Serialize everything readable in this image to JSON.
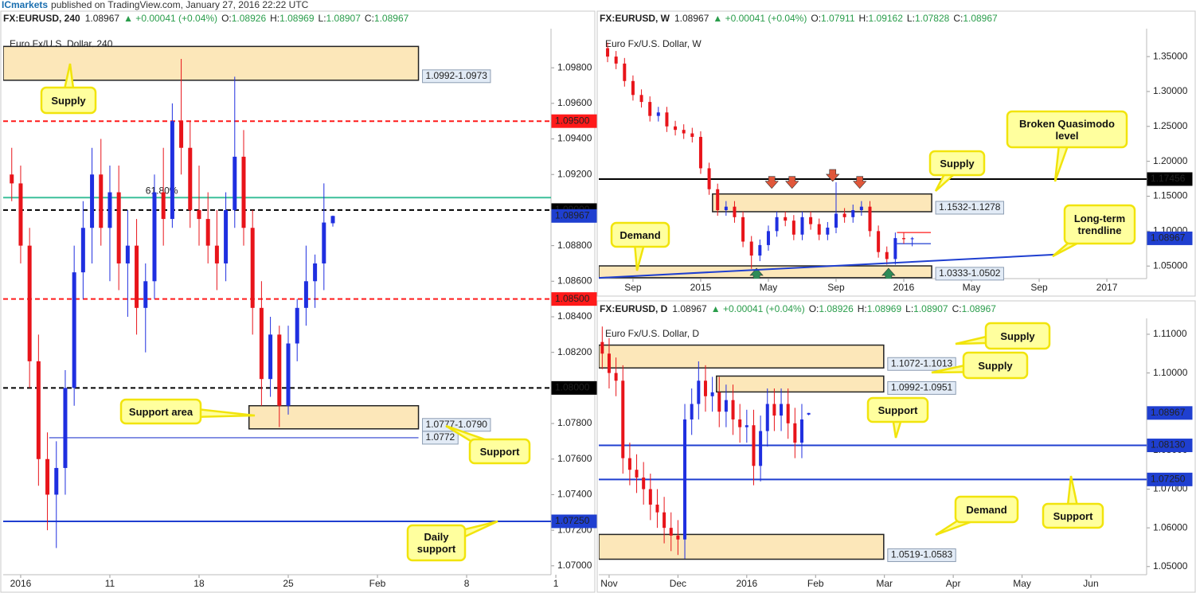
{
  "banner": {
    "brand": "ICmarkets",
    "text": "published on TradingView.com, January 27, 2016 22:22 UTC"
  },
  "chart_data": [
    {
      "type": "candlestick",
      "header": {
        "symbol": "FX:EURUSD, 240",
        "last": "1.08967",
        "change": "▲ +0.00041 (+0.04%)",
        "ohlc": [
          {
            "label": "O:",
            "value": "1.08926"
          },
          {
            "label": "H:",
            "value": "1.08969"
          },
          {
            "label": "L:",
            "value": "1.08907"
          },
          {
            "label": "C:",
            "value": "1.08967"
          }
        ]
      },
      "watermark": "Euro Fx/U.S. Dollar, 240",
      "up_color": "#1f2fe0",
      "down_color": "#e8141a",
      "x": [
        -0.5,
        0,
        0.5,
        1,
        1.5,
        2,
        2.5,
        3,
        3.5,
        4,
        4.5,
        5,
        5.5,
        6,
        6.5,
        7,
        7.5,
        8,
        8.5,
        9,
        9.5,
        10,
        10.5,
        11,
        11.5,
        12,
        12.5,
        13,
        13.5,
        14,
        14.5,
        15,
        15.5,
        16,
        16.5,
        17,
        17.5
      ],
      "open": [
        1.092,
        1.0915,
        1.088,
        1.0815,
        1.076,
        1.074,
        1.0755,
        1.08,
        1.0865,
        1.089,
        1.092,
        1.089,
        1.091,
        1.087,
        1.088,
        1.0845,
        1.086,
        1.091,
        1.0895,
        1.095,
        1.0935,
        1.09,
        1.0895,
        1.088,
        1.087,
        1.09,
        1.093,
        1.089,
        1.0845,
        1.0805,
        1.083,
        1.079,
        1.0825,
        1.0845,
        1.086,
        1.087,
        1.08926
      ],
      "high": [
        1.0935,
        1.0925,
        1.089,
        1.083,
        1.0775,
        1.077,
        1.081,
        1.088,
        1.0905,
        1.0935,
        1.094,
        1.0925,
        1.0925,
        1.09,
        1.0895,
        1.087,
        1.092,
        1.0935,
        1.096,
        1.0985,
        1.095,
        1.0925,
        1.091,
        1.09,
        1.091,
        1.0975,
        1.0945,
        1.09,
        1.086,
        1.084,
        1.0835,
        1.0835,
        1.085,
        1.088,
        1.0875,
        1.0915,
        1.08969
      ],
      "low": [
        1.0905,
        1.087,
        1.08,
        1.0745,
        1.072,
        1.071,
        1.074,
        1.079,
        1.085,
        1.087,
        1.088,
        1.086,
        1.0855,
        1.084,
        1.083,
        1.082,
        1.085,
        1.088,
        1.089,
        1.092,
        1.089,
        1.088,
        1.087,
        1.0855,
        1.086,
        1.089,
        1.088,
        1.083,
        1.079,
        1.0795,
        1.0778,
        1.0785,
        1.0815,
        1.0835,
        1.0845,
        1.0855,
        1.08907
      ],
      "close": [
        1.0915,
        1.088,
        1.0815,
        1.076,
        1.074,
        1.0755,
        1.08,
        1.0865,
        1.089,
        1.092,
        1.089,
        1.091,
        1.087,
        1.088,
        1.0845,
        1.086,
        1.091,
        1.0895,
        1.095,
        1.0935,
        1.09,
        1.0895,
        1.088,
        1.087,
        1.09,
        1.093,
        1.089,
        1.0845,
        1.0805,
        1.083,
        1.079,
        1.0825,
        1.0845,
        1.086,
        1.087,
        1.0893,
        1.08967
      ],
      "xlim": [
        -0.98,
        29.73
      ],
      "xticks": [
        {
          "value": 0,
          "label": "2016"
        },
        {
          "value": 5,
          "label": "11"
        },
        {
          "value": 10,
          "label": "18"
        },
        {
          "value": 15,
          "label": "25"
        },
        {
          "value": 20,
          "label": "Feb"
        },
        {
          "value": 25,
          "label": "8"
        },
        {
          "value": 30,
          "label": "1"
        }
      ],
      "ylim": [
        1.0695,
        1.1002
      ],
      "yticks": [
        {
          "value": 1.07,
          "label": "1.07000"
        },
        {
          "value": 1.072,
          "label": "1.07200"
        },
        {
          "value": 1.074,
          "label": "1.07400"
        },
        {
          "value": 1.076,
          "label": "1.07600"
        },
        {
          "value": 1.078,
          "label": "1.07800"
        },
        {
          "value": 1.08,
          "label": "1.08000"
        },
        {
          "value": 1.082,
          "label": "1.08200"
        },
        {
          "value": 1.084,
          "label": "1.08400"
        },
        {
          "value": 1.086,
          "label": "1.08600"
        },
        {
          "value": 1.088,
          "label": "1.08800"
        },
        {
          "value": 1.09,
          "label": "1.09000"
        },
        {
          "value": 1.092,
          "label": "1.09200"
        },
        {
          "value": 1.094,
          "label": "1.09400"
        },
        {
          "value": 1.096,
          "label": "1.09600"
        },
        {
          "value": 1.098,
          "label": "1.09800"
        }
      ],
      "zones": [
        {
          "low": 1.0973,
          "high": 1.0992,
          "label": "1.0992-1.0973",
          "x_range": [
            -0.98,
            22.3
          ]
        },
        {
          "low": 1.0777,
          "high": 1.079,
          "label": "1.0777-1.0790",
          "x_range": [
            12.8,
            22.3
          ]
        }
      ],
      "levels": [
        {
          "value": 1.095,
          "label": "1.09500",
          "color": "#ff1a1a",
          "style": "dashed",
          "label_at": "axis"
        },
        {
          "value": 1.09,
          "label": "1.09000",
          "color": "#000000",
          "style": "dashed",
          "label_at": "axis"
        },
        {
          "value": 1.08967,
          "label": "1.08967",
          "color": "#1f3fd0",
          "style": "none",
          "label_at": "axis"
        },
        {
          "value": 1.085,
          "label": "1.08500",
          "color": "#ff1a1a",
          "style": "dashed",
          "label_at": "axis"
        },
        {
          "value": 1.08,
          "label": "1.08000",
          "color": "#000000",
          "style": "dashed",
          "label_at": "axis"
        },
        {
          "value": 1.0772,
          "label": "1.0772",
          "color": "#2a3fcf",
          "style": "thin",
          "label_at": "line",
          "x_range": [
            1.6,
            22.3
          ]
        },
        {
          "value": 1.0725,
          "label": "1.07250",
          "color": "#1f3fd0",
          "style": "solid",
          "label_at": "axis"
        }
      ],
      "fib": {
        "value": 1.0907,
        "label": "61.80%",
        "x": 7,
        "color": "#3cbf9a"
      },
      "callouts": [
        "Supply",
        "Support area",
        "Support",
        "Daily support"
      ]
    },
    {
      "type": "candlestick",
      "header": {
        "symbol": "FX:EURUSD, W",
        "last": "1.08967",
        "change": "▲ +0.00041 (+0.04%)",
        "ohlc": [
          {
            "label": "O:",
            "value": "1.07911"
          },
          {
            "label": "H:",
            "value": "1.09162"
          },
          {
            "label": "L:",
            "value": "1.07828"
          },
          {
            "label": "C:",
            "value": "1.08967"
          }
        ]
      },
      "watermark": "Euro Fx/U.S. Dollar, W",
      "up_color": "#1f2fe0",
      "down_color": "#e8141a",
      "x": [
        -1.5,
        -1,
        -0.5,
        0,
        0.5,
        1,
        1.5,
        2,
        2.5,
        3,
        3.5,
        4,
        4.5,
        5,
        5.5,
        6,
        6.5,
        7,
        7.5,
        8,
        8.5,
        9,
        9.5,
        10,
        10.5,
        11,
        11.5,
        12,
        12.5,
        13,
        13.5,
        14,
        14.5,
        15,
        15.5,
        16,
        16.5
      ],
      "open": [
        1.362,
        1.35,
        1.34,
        1.315,
        1.295,
        1.285,
        1.265,
        1.27,
        1.25,
        1.245,
        1.24,
        1.235,
        1.19,
        1.16,
        1.13,
        1.135,
        1.12,
        1.085,
        1.065,
        1.08,
        1.1,
        1.12,
        1.115,
        1.095,
        1.12,
        1.11,
        1.095,
        1.105,
        1.125,
        1.12,
        1.13,
        1.135,
        1.1,
        1.07,
        1.06,
        1.09,
        1.0885
      ],
      "high": [
        1.37,
        1.358,
        1.348,
        1.323,
        1.303,
        1.293,
        1.278,
        1.278,
        1.258,
        1.253,
        1.248,
        1.243,
        1.198,
        1.168,
        1.143,
        1.143,
        1.128,
        1.093,
        1.088,
        1.108,
        1.128,
        1.128,
        1.123,
        1.128,
        1.128,
        1.118,
        1.113,
        1.17,
        1.133,
        1.138,
        1.143,
        1.143,
        1.108,
        1.078,
        1.098,
        1.098,
        1.0916
      ],
      "low": [
        1.342,
        1.332,
        1.307,
        1.287,
        1.277,
        1.257,
        1.257,
        1.242,
        1.237,
        1.232,
        1.227,
        1.182,
        1.152,
        1.122,
        1.122,
        1.112,
        1.077,
        1.046,
        1.057,
        1.072,
        1.092,
        1.107,
        1.087,
        1.087,
        1.102,
        1.087,
        1.087,
        1.097,
        1.112,
        1.112,
        1.122,
        1.092,
        1.062,
        1.052,
        1.052,
        1.082,
        1.0783
      ],
      "close": [
        1.35,
        1.34,
        1.315,
        1.295,
        1.285,
        1.265,
        1.27,
        1.25,
        1.245,
        1.24,
        1.235,
        1.19,
        1.16,
        1.13,
        1.135,
        1.12,
        1.085,
        1.065,
        1.08,
        1.1,
        1.12,
        1.115,
        1.095,
        1.12,
        1.11,
        1.095,
        1.105,
        1.125,
        1.12,
        1.13,
        1.135,
        1.1,
        1.07,
        1.06,
        1.09,
        1.0885,
        1.0897
      ],
      "xlim": [
        -2.02,
        30.35
      ],
      "xticks": [
        {
          "value": 0,
          "label": "Sep"
        },
        {
          "value": 4,
          "label": "2015"
        },
        {
          "value": 8,
          "label": "May"
        },
        {
          "value": 12,
          "label": "Sep"
        },
        {
          "value": 16,
          "label": "2016"
        },
        {
          "value": 20,
          "label": "May"
        },
        {
          "value": 24,
          "label": "Sep"
        },
        {
          "value": 28,
          "label": "2017"
        }
      ],
      "ylim": [
        1.032,
        1.39
      ],
      "yticks": [
        {
          "value": 1.05,
          "label": "1.05000"
        },
        {
          "value": 1.1,
          "label": "1.10000"
        },
        {
          "value": 1.15,
          "label": "1.15000"
        },
        {
          "value": 1.2,
          "label": "1.20000"
        },
        {
          "value": 1.25,
          "label": "1.25000"
        },
        {
          "value": 1.3,
          "label": "1.30000"
        },
        {
          "value": 1.35,
          "label": "1.35000"
        }
      ],
      "zones": [
        {
          "low": 1.1278,
          "high": 1.1532,
          "label": "1.1532-1.1278",
          "x_range": [
            4.7,
            17.65
          ]
        },
        {
          "low": 1.0333,
          "high": 1.0502,
          "label": "1.0333-1.0502",
          "x_range": [
            -2.02,
            17.65
          ]
        }
      ],
      "levels": [
        {
          "value": 1.17456,
          "label": "1.17456",
          "color": "#000000",
          "style": "solid",
          "label_at": "axis"
        },
        {
          "value": 1.08967,
          "label": "1.08967",
          "color": "#1f3fd0",
          "style": "none",
          "label_at": "axis"
        },
        {
          "value": 1.098,
          "color": "#ff1a1a",
          "style": "thin",
          "x_range": [
            15.6,
            17.6
          ]
        },
        {
          "value": 1.082,
          "color": "#1f3fd0",
          "style": "thin",
          "x_range": [
            15.6,
            17.6
          ]
        }
      ],
      "trendline": [
        {
          "x": -2.02,
          "y": 1.033
        },
        {
          "x": 25,
          "y": 1.0665
        }
      ],
      "markers": [
        {
          "x": 8.2,
          "y": 1.168,
          "dir": "down",
          "color": "#e0573a"
        },
        {
          "x": 9.4,
          "y": 1.168,
          "dir": "down",
          "color": "#e0573a"
        },
        {
          "x": 11.8,
          "y": 1.178,
          "dir": "down",
          "color": "#e0573a"
        },
        {
          "x": 13.4,
          "y": 1.168,
          "dir": "down",
          "color": "#e0573a"
        },
        {
          "x": 7.3,
          "y": 1.04,
          "dir": "up",
          "color": "#2e8b57"
        },
        {
          "x": 15.1,
          "y": 1.04,
          "dir": "up",
          "color": "#2e8b57"
        }
      ],
      "callouts": [
        "Broken Quasimodo level",
        "Supply",
        "Long-term trendline",
        "Demand"
      ]
    },
    {
      "type": "candlestick",
      "header": {
        "symbol": "FX:EURUSD, D",
        "last": "1.08967",
        "change": "▲ +0.00041 (+0.04%)",
        "ohlc": [
          {
            "label": "O:",
            "value": "1.08926"
          },
          {
            "label": "H:",
            "value": "1.08969"
          },
          {
            "label": "L:",
            "value": "1.08907"
          },
          {
            "label": "C:",
            "value": "1.08967"
          }
        ]
      },
      "watermark": "Euro Fx/U.S. Dollar, D",
      "up_color": "#1f2fe0",
      "down_color": "#e8141a",
      "x": [
        -0.1,
        0,
        0.1,
        0.2,
        0.3,
        0.4,
        0.5,
        0.6,
        0.7,
        0.8,
        0.9,
        1,
        1.1,
        1.2,
        1.3,
        1.4,
        1.5,
        1.6,
        1.7,
        1.8,
        1.9,
        2,
        2.1,
        2.2,
        2.3,
        2.4,
        2.5,
        2.6,
        2.7,
        2.8,
        2.9
      ],
      "open": [
        1.108,
        1.105,
        1.1,
        1.098,
        1.078,
        1.075,
        1.073,
        1.07,
        1.066,
        1.064,
        1.06,
        1.058,
        1.057,
        1.088,
        1.092,
        1.098,
        1.094,
        1.095,
        1.09,
        1.093,
        1.088,
        1.086,
        1.0865,
        1.076,
        1.085,
        1.092,
        1.089,
        1.092,
        1.087,
        1.082,
        1.08926
      ],
      "high": [
        1.112,
        1.109,
        1.104,
        1.102,
        1.082,
        1.079,
        1.077,
        1.074,
        1.07,
        1.068,
        1.064,
        1.062,
        1.092,
        1.096,
        1.103,
        1.102,
        1.099,
        1.099,
        1.097,
        1.097,
        1.092,
        1.0905,
        1.0905,
        1.089,
        1.096,
        1.096,
        1.096,
        1.096,
        1.091,
        1.092,
        1.08969
      ],
      "low": [
        1.101,
        1.096,
        1.094,
        1.074,
        1.071,
        1.069,
        1.066,
        1.062,
        1.06,
        1.056,
        1.054,
        1.053,
        1.052,
        1.084,
        1.088,
        1.09,
        1.09,
        1.086,
        1.086,
        1.084,
        1.082,
        1.082,
        1.071,
        1.072,
        1.081,
        1.085,
        1.085,
        1.083,
        1.078,
        1.078,
        1.08907
      ],
      "close": [
        1.105,
        1.1,
        1.098,
        1.078,
        1.075,
        1.073,
        1.07,
        1.066,
        1.064,
        1.06,
        1.058,
        1.057,
        1.088,
        1.092,
        1.098,
        1.094,
        1.095,
        1.09,
        1.093,
        1.088,
        1.086,
        1.0865,
        1.076,
        1.085,
        1.092,
        1.089,
        1.092,
        1.087,
        1.082,
        1.088,
        1.08967
      ],
      "xlim": [
        -0.15,
        7.81
      ],
      "xticks": [
        {
          "value": 0,
          "label": "Nov"
        },
        {
          "value": 1,
          "label": "Dec"
        },
        {
          "value": 2,
          "label": "2016"
        },
        {
          "value": 3,
          "label": "Feb"
        },
        {
          "value": 4,
          "label": "Mar"
        },
        {
          "value": 5,
          "label": "Apr"
        },
        {
          "value": 6,
          "label": "May"
        },
        {
          "value": 7,
          "label": "Jun"
        }
      ],
      "ylim": [
        1.0479,
        1.1141
      ],
      "yticks": [
        {
          "value": 1.05,
          "label": "1.05000"
        },
        {
          "value": 1.06,
          "label": "1.06000"
        },
        {
          "value": 1.07,
          "label": "1.07000"
        },
        {
          "value": 1.08,
          "label": "1.08000"
        },
        {
          "value": 1.09,
          "label": "1.09000"
        },
        {
          "value": 1.1,
          "label": "1.10000"
        },
        {
          "value": 1.11,
          "label": "1.11000"
        }
      ],
      "zones": [
        {
          "low": 1.1013,
          "high": 1.1072,
          "label": "1.1072-1.1013",
          "x_range": [
            -0.15,
            3.99
          ]
        },
        {
          "low": 1.0951,
          "high": 1.0992,
          "label": "1.0992-1.0951",
          "x_range": [
            1.56,
            3.99
          ]
        },
        {
          "low": 1.0519,
          "high": 1.0583,
          "label": "1.0519-1.0583",
          "x_range": [
            -0.15,
            3.99
          ]
        }
      ],
      "levels": [
        {
          "value": 1.08967,
          "label": "1.08967",
          "color": "#1f3fd0",
          "style": "none",
          "label_at": "axis"
        },
        {
          "value": 1.0813,
          "label": "1.08130",
          "color": "#1f3fd0",
          "style": "solid",
          "label_at": "axis"
        },
        {
          "value": 1.0725,
          "label": "1.07250",
          "color": "#1f3fd0",
          "style": "solid",
          "label_at": "axis"
        }
      ],
      "callouts": [
        "Supply",
        "Supply",
        "Support",
        "Demand",
        "Support"
      ]
    }
  ]
}
